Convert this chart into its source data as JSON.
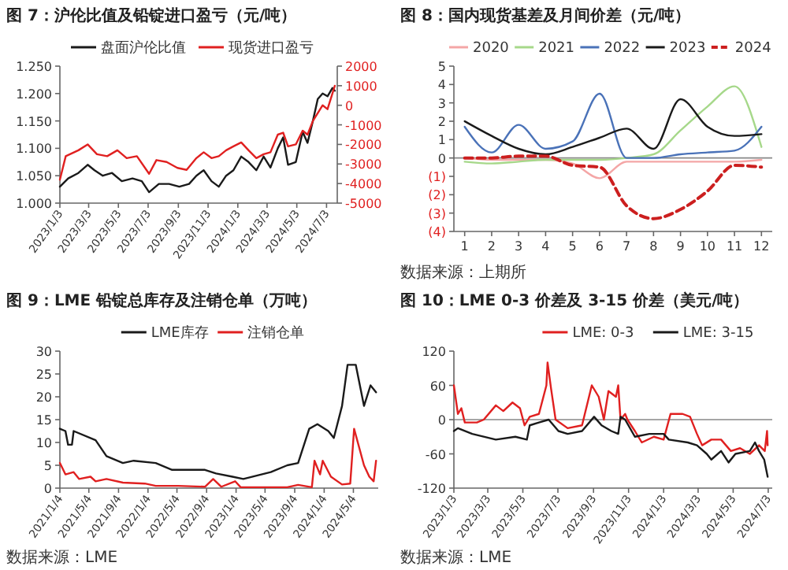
{
  "chart_data": [
    {
      "type": "line",
      "title": "图 7：沪伦比值及铅锭进口盈亏（元/吨）",
      "legend": "top",
      "xlim": [
        "2023-01-03",
        "2024-07-25"
      ],
      "xticks": [
        {
          "value": "2023-01-03",
          "label": "2023/1/3"
        },
        {
          "value": "2023-03-03",
          "label": "2023/3/3"
        },
        {
          "value": "2023-05-03",
          "label": "2023/5/3"
        },
        {
          "value": "2023-07-03",
          "label": "2023/7/3"
        },
        {
          "value": "2023-09-03",
          "label": "2023/9/3"
        },
        {
          "value": "2023-11-03",
          "label": "2023/11/3"
        },
        {
          "value": "2024-01-03",
          "label": "2024/1/3"
        },
        {
          "value": "2024-03-03",
          "label": "2024/3/3"
        },
        {
          "value": "2024-05-03",
          "label": "2024/5/3"
        },
        {
          "value": "2024-07-03",
          "label": "2024/7/3"
        }
      ],
      "ylim": [
        1.0,
        1.25
      ],
      "yticks": [
        {
          "value": 1.0,
          "label": "1.000"
        },
        {
          "value": 1.05,
          "label": "1.050"
        },
        {
          "value": 1.1,
          "label": "1.100"
        },
        {
          "value": 1.15,
          "label": "1.150"
        },
        {
          "value": 1.2,
          "label": "1.200"
        },
        {
          "value": 1.25,
          "label": "1.250"
        }
      ],
      "y2lim": [
        -5000,
        2000
      ],
      "y2ticks": [
        -5000,
        -4000,
        -3000,
        -2000,
        -1000,
        0,
        1000,
        2000
      ],
      "series": [
        {
          "name": "盘面沪伦比值",
          "color": "#1a1a1a",
          "x": [
            "2023-01-03",
            "2023-01-20",
            "2023-02-10",
            "2023-03-01",
            "2023-03-15",
            "2023-04-01",
            "2023-04-20",
            "2023-05-10",
            "2023-06-01",
            "2023-06-20",
            "2023-07-05",
            "2023-07-25",
            "2023-08-15",
            "2023-09-05",
            "2023-09-25",
            "2023-10-10",
            "2023-10-25",
            "2023-11-10",
            "2023-11-25",
            "2023-12-10",
            "2023-12-25",
            "2024-01-10",
            "2024-01-25",
            "2024-02-10",
            "2024-02-25",
            "2024-03-10",
            "2024-03-25",
            "2024-04-05",
            "2024-04-15",
            "2024-05-01",
            "2024-05-15",
            "2024-05-25",
            "2024-06-05",
            "2024-06-15",
            "2024-06-25",
            "2024-07-05",
            "2024-07-15",
            "2024-07-20"
          ],
          "values": [
            1.03,
            1.045,
            1.055,
            1.07,
            1.06,
            1.05,
            1.055,
            1.04,
            1.045,
            1.04,
            1.02,
            1.035,
            1.035,
            1.03,
            1.035,
            1.05,
            1.06,
            1.04,
            1.03,
            1.05,
            1.06,
            1.085,
            1.075,
            1.06,
            1.085,
            1.065,
            1.1,
            1.12,
            1.07,
            1.075,
            1.13,
            1.11,
            1.15,
            1.19,
            1.2,
            1.195,
            1.21,
            1.205
          ]
        },
        {
          "name": "现货进口盈亏",
          "color": "#e02020",
          "axis": "y2",
          "x": [
            "2023-01-03",
            "2023-01-15",
            "2023-02-10",
            "2023-03-01",
            "2023-03-20",
            "2023-04-10",
            "2023-05-01",
            "2023-05-20",
            "2023-06-10",
            "2023-07-05",
            "2023-07-20",
            "2023-08-10",
            "2023-09-01",
            "2023-09-20",
            "2023-10-10",
            "2023-10-25",
            "2023-11-10",
            "2023-11-25",
            "2023-12-10",
            "2023-12-25",
            "2024-01-10",
            "2024-01-25",
            "2024-02-10",
            "2024-02-25",
            "2024-03-10",
            "2024-03-25",
            "2024-04-05",
            "2024-04-15",
            "2024-05-01",
            "2024-05-15",
            "2024-05-25",
            "2024-06-05",
            "2024-06-15",
            "2024-06-25",
            "2024-07-05",
            "2024-07-15",
            "2024-07-20"
          ],
          "values": [
            -3800,
            -2600,
            -2300,
            -2000,
            -2500,
            -2600,
            -2300,
            -2700,
            -2600,
            -3500,
            -2800,
            -2900,
            -3200,
            -3300,
            -2700,
            -2400,
            -2700,
            -2600,
            -2300,
            -2100,
            -1900,
            -2300,
            -2700,
            -2500,
            -2400,
            -1500,
            -1400,
            -2100,
            -2000,
            -1300,
            -1500,
            -800,
            -400,
            0,
            -200,
            600,
            1000
          ]
        }
      ]
    },
    {
      "type": "line",
      "title": "图 8：国内现货基差及月间价差（元/吨）",
      "legend": "top",
      "categories": [
        "1",
        "2",
        "3",
        "4",
        "5",
        "6",
        "7",
        "8",
        "9",
        "10",
        "11",
        "12"
      ],
      "ylim": [
        -4,
        5
      ],
      "yticks": [
        {
          "value": -4,
          "label": "(4)"
        },
        {
          "value": -3,
          "label": "(3)"
        },
        {
          "value": -2,
          "label": "(2)"
        },
        {
          "value": -1,
          "label": "(1)"
        },
        0,
        1,
        2,
        3,
        4,
        5
      ],
      "ref_lines": [
        {
          "axis": "y",
          "value": 0
        }
      ],
      "annotations": [
        "数据来源：上期所"
      ],
      "series": [
        {
          "name": "2020",
          "color": "#f4a6a6",
          "values": [
            0,
            -0.1,
            -0.1,
            -0.1,
            -0.3,
            -1.1,
            -0.2,
            -0.2,
            -0.2,
            -0.2,
            -0.2,
            -0.1
          ]
        },
        {
          "name": "2021",
          "color": "#a6d88a",
          "values": [
            -0.2,
            -0.3,
            -0.2,
            -0.1,
            -0.1,
            -0.1,
            0,
            0.2,
            1.5,
            2.8,
            3.9,
            0.6
          ]
        },
        {
          "name": "2022",
          "color": "#4a72b8",
          "values": [
            1.7,
            0.3,
            1.8,
            0.5,
            0.9,
            3.5,
            0,
            0,
            0.2,
            0.3,
            0.4,
            1.7
          ]
        },
        {
          "name": "2023",
          "color": "#1a1a1a",
          "values": [
            2.0,
            1.2,
            0.5,
            0.2,
            0.6,
            1.1,
            1.6,
            0.5,
            3.2,
            1.7,
            1.2,
            1.3
          ]
        },
        {
          "name": "2024",
          "color": "#cc1f1f",
          "line_style": "dashed",
          "values": [
            0,
            0,
            0.1,
            0.1,
            -0.4,
            -0.5,
            -2.6,
            -3.3,
            -2.8,
            -1.8,
            -0.4,
            -0.5
          ]
        }
      ]
    },
    {
      "type": "line",
      "title": "图 9：LME 铅锭总库存及注销仓单（万吨）",
      "legend": "top",
      "xlim": [
        "2021-01-04",
        "2024-08-15"
      ],
      "xticks": [
        {
          "value": "2021-01-04",
          "label": "2021/1/4"
        },
        {
          "value": "2021-05-04",
          "label": "2021/5/4"
        },
        {
          "value": "2021-09-04",
          "label": "2021/9/4"
        },
        {
          "value": "2022-01-04",
          "label": "2022/1/4"
        },
        {
          "value": "2022-05-04",
          "label": "2022/5/4"
        },
        {
          "value": "2022-09-04",
          "label": "2022/9/4"
        },
        {
          "value": "2023-01-04",
          "label": "2023/1/4"
        },
        {
          "value": "2023-05-04",
          "label": "2023/5/4"
        },
        {
          "value": "2023-09-04",
          "label": "2023/9/4"
        },
        {
          "value": "2024-01-04",
          "label": "2024/1/4"
        },
        {
          "value": "2024-05-04",
          "label": "2024/5/4"
        }
      ],
      "ylim": [
        0,
        30
      ],
      "yticks": [
        0,
        5,
        10,
        15,
        20,
        25,
        30
      ],
      "annotations": [
        "数据来源：LME"
      ],
      "series": [
        {
          "name": "LME库存",
          "color": "#1a1a1a",
          "x": [
            "2021-01-04",
            "2021-01-27",
            "2021-02-07",
            "2021-02-23",
            "2021-03-02",
            "2021-06-01",
            "2021-07-16",
            "2021-09-22",
            "2021-11-06",
            "2022-02-05",
            "2022-04-14",
            "2022-08-28",
            "2022-10-13",
            "2022-12-20",
            "2023-02-03",
            "2023-05-28",
            "2023-08-04",
            "2023-09-18",
            "2023-11-03",
            "2023-12-07",
            "2024-01-21",
            "2024-02-13",
            "2024-03-18",
            "2024-04-10",
            "2024-05-14",
            "2024-06-17",
            "2024-07-14",
            "2024-08-06"
          ],
          "values": [
            13,
            12.5,
            9.5,
            9.5,
            12.5,
            10.5,
            7,
            5.5,
            6,
            5.5,
            4,
            4,
            3.2,
            2.5,
            2,
            3.5,
            5,
            5.5,
            13,
            14,
            12.5,
            11,
            18,
            27,
            27,
            18,
            22.5,
            21
          ]
        },
        {
          "name": "注销仓单",
          "color": "#e02020",
          "x": [
            "2021-01-04",
            "2021-01-27",
            "2021-03-02",
            "2021-03-25",
            "2021-05-11",
            "2021-06-01",
            "2021-07-16",
            "2021-09-22",
            "2021-12-22",
            "2022-02-05",
            "2022-05-09",
            "2022-08-28",
            "2022-10-01",
            "2022-11-04",
            "2022-12-31",
            "2023-01-23",
            "2023-08-04",
            "2023-09-18",
            "2023-11-14",
            "2023-11-25",
            "2023-12-18",
            "2023-12-29",
            "2024-02-01",
            "2024-03-18",
            "2024-04-21",
            "2024-05-07",
            "2024-06-17",
            "2024-07-09",
            "2024-07-27",
            "2024-08-06"
          ],
          "values": [
            5.5,
            3,
            3.5,
            2,
            2.5,
            1.5,
            2,
            1.2,
            1,
            0.5,
            0.5,
            0.3,
            2,
            0.3,
            1.5,
            0.2,
            0.2,
            0.7,
            0.2,
            6,
            3,
            6,
            2.5,
            0.8,
            1,
            13,
            5,
            2.5,
            1.5,
            6
          ]
        }
      ]
    },
    {
      "type": "line",
      "title": "图 10：LME 0-3 价差及 3-15 价差（美元/吨）",
      "legend": "top right",
      "xlim": [
        "2023-01-03",
        "2024-07-10"
      ],
      "xticks": [
        {
          "value": "2023-01-03",
          "label": "2023/1/3"
        },
        {
          "value": "2023-03-03",
          "label": "2023/3/3"
        },
        {
          "value": "2023-05-03",
          "label": "2023/5/3"
        },
        {
          "value": "2023-07-03",
          "label": "2023/7/3"
        },
        {
          "value": "2023-09-03",
          "label": "2023/9/3"
        },
        {
          "value": "2023-11-03",
          "label": "2023/11/3"
        },
        {
          "value": "2024-01-03",
          "label": "2024/1/3"
        },
        {
          "value": "2024-03-03",
          "label": "2024/3/3"
        },
        {
          "value": "2024-05-03",
          "label": "2024/5/3"
        },
        {
          "value": "2024-07-03",
          "label": "2024/7/3"
        }
      ],
      "ylim": [
        -120,
        120
      ],
      "yticks": [
        -120,
        -60,
        0,
        60,
        120
      ],
      "ref_lines": [
        {
          "axis": "y",
          "value": 0
        }
      ],
      "annotations": [
        "数据来源：LME"
      ],
      "series": [
        {
          "name": "LME: 0-3",
          "color": "#e02020",
          "x": [
            "2023-01-03",
            "2023-01-10",
            "2023-01-16",
            "2023-01-22",
            "2023-02-12",
            "2023-02-24",
            "2023-03-17",
            "2023-03-30",
            "2023-04-15",
            "2023-04-28",
            "2023-05-06",
            "2023-05-15",
            "2023-05-31",
            "2023-06-13",
            "2023-06-15",
            "2023-06-21",
            "2023-06-29",
            "2023-07-20",
            "2023-08-14",
            "2023-08-31",
            "2023-09-12",
            "2023-09-21",
            "2023-09-29",
            "2023-10-12",
            "2023-10-16",
            "2023-10-20",
            "2023-10-28",
            "2023-11-01",
            "2023-11-14",
            "2023-11-26",
            "2023-12-17",
            "2024-01-03",
            "2024-01-15",
            "2024-02-05",
            "2024-02-18",
            "2024-03-01",
            "2024-03-10",
            "2024-03-26",
            "2024-04-12",
            "2024-04-29",
            "2024-05-15",
            "2024-06-01",
            "2024-06-17",
            "2024-06-27",
            "2024-07-01",
            "2024-07-02"
          ],
          "values": [
            60,
            10,
            20,
            -5,
            -5,
            0,
            25,
            15,
            30,
            20,
            -10,
            5,
            10,
            60,
            100,
            55,
            0,
            -15,
            -10,
            60,
            40,
            0,
            50,
            40,
            60,
            0,
            10,
            0,
            -20,
            -40,
            -30,
            -35,
            10,
            10,
            5,
            -25,
            -45,
            -35,
            -35,
            -55,
            -50,
            -60,
            -45,
            -55,
            -20,
            -45
          ]
        },
        {
          "name": "LME: 3-15",
          "color": "#1a1a1a",
          "x": [
            "2023-01-03",
            "2023-01-10",
            "2023-02-04",
            "2023-03-17",
            "2023-04-20",
            "2023-05-10",
            "2023-05-15",
            "2023-05-31",
            "2023-06-17",
            "2023-07-04",
            "2023-07-20",
            "2023-08-14",
            "2023-09-04",
            "2023-09-17",
            "2023-10-04",
            "2023-10-16",
            "2023-10-20",
            "2023-10-28",
            "2023-11-14",
            "2023-12-09",
            "2024-01-03",
            "2024-01-12",
            "2024-02-14",
            "2024-03-01",
            "2024-03-18",
            "2024-03-26",
            "2024-04-12",
            "2024-04-25",
            "2024-05-07",
            "2024-06-01",
            "2024-06-10",
            "2024-06-17",
            "2024-06-26",
            "2024-07-02"
          ],
          "values": [
            -20,
            -15,
            -25,
            -35,
            -30,
            -35,
            -10,
            -5,
            0,
            -20,
            -25,
            -20,
            5,
            -10,
            -20,
            -25,
            5,
            0,
            -30,
            -25,
            -25,
            -35,
            -40,
            -45,
            -60,
            -70,
            -55,
            -75,
            -60,
            -55,
            -40,
            -55,
            -70,
            -100
          ]
        }
      ]
    }
  ]
}
